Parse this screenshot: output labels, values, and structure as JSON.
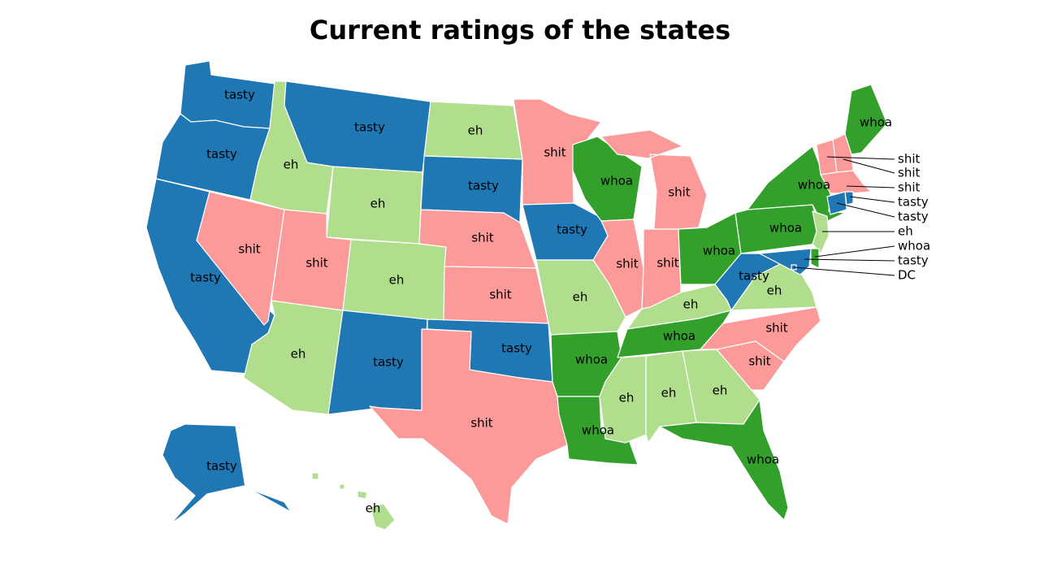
{
  "title": "Current ratings of the states",
  "categories": {
    "tasty": "#1f77b4",
    "eh": "#b0de8c",
    "shit": "#fb9a99",
    "whoa": "#33a02c"
  },
  "states": {
    "WA": {
      "rating": "tasty"
    },
    "OR": {
      "rating": "tasty"
    },
    "CA": {
      "rating": "tasty"
    },
    "ID": {
      "rating": "eh"
    },
    "NV": {
      "rating": "shit"
    },
    "MT": {
      "rating": "tasty"
    },
    "WY": {
      "rating": "eh"
    },
    "UT": {
      "rating": "shit"
    },
    "AZ": {
      "rating": "eh"
    },
    "CO": {
      "rating": "eh"
    },
    "NM": {
      "rating": "tasty"
    },
    "ND": {
      "rating": "eh"
    },
    "SD": {
      "rating": "tasty"
    },
    "NE": {
      "rating": "shit"
    },
    "KS": {
      "rating": "shit"
    },
    "OK": {
      "rating": "tasty"
    },
    "TX": {
      "rating": "shit"
    },
    "MN": {
      "rating": "shit"
    },
    "IA": {
      "rating": "tasty"
    },
    "MO": {
      "rating": "eh"
    },
    "AR": {
      "rating": "whoa"
    },
    "LA": {
      "rating": "whoa"
    },
    "WI": {
      "rating": "whoa"
    },
    "IL": {
      "rating": "shit"
    },
    "MI": {
      "rating": "shit"
    },
    "IN": {
      "rating": "shit"
    },
    "OH": {
      "rating": "whoa"
    },
    "KY": {
      "rating": "eh"
    },
    "TN": {
      "rating": "whoa"
    },
    "MS": {
      "rating": "eh"
    },
    "AL": {
      "rating": "eh"
    },
    "GA": {
      "rating": "eh"
    },
    "FL": {
      "rating": "whoa"
    },
    "SC": {
      "rating": "shit"
    },
    "NC": {
      "rating": "shit"
    },
    "VA": {
      "rating": "eh"
    },
    "WV": {
      "rating": "tasty"
    },
    "PA": {
      "rating": "whoa"
    },
    "NY": {
      "rating": "whoa"
    },
    "ME": {
      "rating": "whoa"
    },
    "VT": {
      "rating": "shit"
    },
    "NH": {
      "rating": "shit"
    },
    "MA": {
      "rating": "shit"
    },
    "RI": {
      "rating": "tasty"
    },
    "CT": {
      "rating": "tasty"
    },
    "NJ": {
      "rating": "eh"
    },
    "DE": {
      "rating": "whoa"
    },
    "MD": {
      "rating": "tasty"
    },
    "DC": {
      "rating": "tasty"
    },
    "AK": {
      "rating": "tasty"
    },
    "HI": {
      "rating": "eh"
    }
  },
  "callouts": [
    {
      "state": "VT",
      "text": "shit"
    },
    {
      "state": "NH",
      "text": "shit"
    },
    {
      "state": "MA",
      "text": "shit"
    },
    {
      "state": "RI",
      "text": "tasty"
    },
    {
      "state": "CT",
      "text": "tasty"
    },
    {
      "state": "NJ",
      "text": "eh"
    },
    {
      "state": "DE",
      "text": "whoa"
    },
    {
      "state": "MD",
      "text": "tasty"
    },
    {
      "state": "DC",
      "text": "DC"
    }
  ]
}
